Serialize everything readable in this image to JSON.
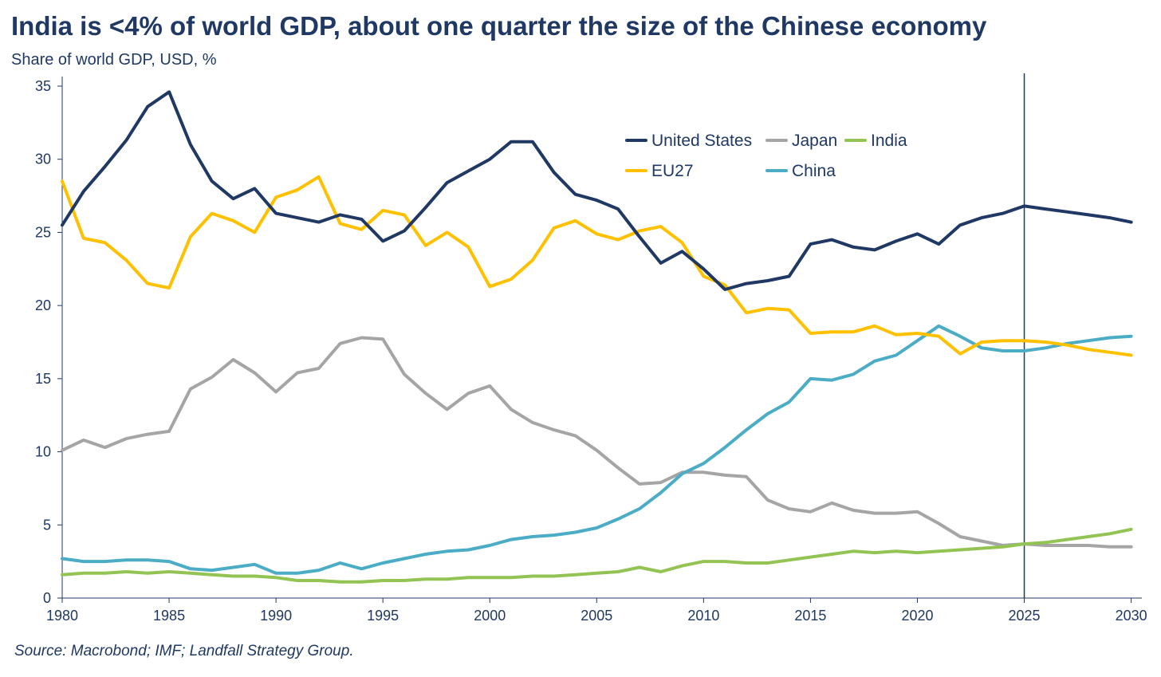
{
  "chart_data": {
    "type": "line",
    "title": "India is <4% of world GDP, about one quarter the size of the Chinese economy",
    "subtitle": "Share of world GDP, USD, %",
    "source": "Source: Macrobond; IMF; Landfall Strategy Group.",
    "xlim": [
      1980,
      2030.5
    ],
    "ylim": [
      0,
      35
    ],
    "x_ticks": [
      "1980",
      "1985",
      "1990",
      "1995",
      "2000",
      "2005",
      "2010",
      "2015",
      "2020",
      "2025",
      "2030"
    ],
    "y_ticks": [
      "0",
      "5",
      "10",
      "15",
      "20",
      "25",
      "30",
      "35"
    ],
    "vertical_marker": 2025,
    "grid": false,
    "legend_position": "top-right",
    "x": [
      1980,
      1981,
      1982,
      1983,
      1984,
      1985,
      1986,
      1987,
      1988,
      1989,
      1990,
      1991,
      1992,
      1993,
      1994,
      1995,
      1996,
      1997,
      1998,
      1999,
      2000,
      2001,
      2002,
      2003,
      2004,
      2005,
      2006,
      2007,
      2008,
      2009,
      2010,
      2011,
      2012,
      2013,
      2014,
      2015,
      2016,
      2017,
      2018,
      2019,
      2020,
      2021,
      2022,
      2023,
      2024,
      2025,
      2026,
      2027,
      2028,
      2029,
      2030
    ],
    "series": [
      {
        "name": "United States",
        "color": "#1f3864",
        "values": [
          25.5,
          27.8,
          29.5,
          31.3,
          33.6,
          34.6,
          31.0,
          28.5,
          27.3,
          28.0,
          26.3,
          26.0,
          25.7,
          26.2,
          25.9,
          24.4,
          25.1,
          26.7,
          28.4,
          29.2,
          30.0,
          31.2,
          31.2,
          29.1,
          27.6,
          27.2,
          26.6,
          24.7,
          22.9,
          23.7,
          22.5,
          21.1,
          21.5,
          21.7,
          22.0,
          24.2,
          24.5,
          24.0,
          23.8,
          24.4,
          24.9,
          24.2,
          25.5,
          26.0,
          26.3,
          26.8,
          26.6,
          26.4,
          26.2,
          26.0,
          25.7
        ]
      },
      {
        "name": "EU27",
        "color": "#ffc000",
        "values": [
          28.5,
          24.6,
          24.3,
          23.1,
          21.5,
          21.2,
          24.7,
          26.3,
          25.8,
          25.0,
          27.4,
          27.9,
          28.8,
          25.6,
          25.2,
          26.5,
          26.2,
          24.1,
          25.0,
          24.0,
          21.3,
          21.8,
          23.1,
          25.3,
          25.8,
          24.9,
          24.5,
          25.1,
          25.4,
          24.3,
          22.0,
          21.4,
          19.5,
          19.8,
          19.7,
          18.1,
          18.2,
          18.2,
          18.6,
          18.0,
          18.1,
          17.9,
          16.7,
          17.5,
          17.6,
          17.6,
          17.5,
          17.3,
          17.0,
          16.8,
          16.6
        ]
      },
      {
        "name": "Japan",
        "color": "#a5a5a5",
        "values": [
          10.1,
          10.8,
          10.3,
          10.9,
          11.2,
          11.4,
          14.3,
          15.1,
          16.3,
          15.4,
          14.1,
          15.4,
          15.7,
          17.4,
          17.8,
          17.7,
          15.3,
          14.0,
          12.9,
          14.0,
          14.5,
          12.9,
          12.0,
          11.5,
          11.1,
          10.1,
          8.9,
          7.8,
          7.9,
          8.6,
          8.6,
          8.4,
          8.3,
          6.7,
          6.1,
          5.9,
          6.5,
          6.0,
          5.8,
          5.8,
          5.9,
          5.1,
          4.2,
          3.9,
          3.6,
          3.7,
          3.6,
          3.6,
          3.6,
          3.5,
          3.5
        ]
      },
      {
        "name": "India",
        "color": "#92c353",
        "values": [
          1.6,
          1.7,
          1.7,
          1.8,
          1.7,
          1.8,
          1.7,
          1.6,
          1.5,
          1.5,
          1.4,
          1.2,
          1.2,
          1.1,
          1.1,
          1.2,
          1.2,
          1.3,
          1.3,
          1.4,
          1.4,
          1.4,
          1.5,
          1.5,
          1.6,
          1.7,
          1.8,
          2.1,
          1.8,
          2.2,
          2.5,
          2.5,
          2.4,
          2.4,
          2.6,
          2.8,
          3.0,
          3.2,
          3.1,
          3.2,
          3.1,
          3.2,
          3.3,
          3.4,
          3.5,
          3.7,
          3.8,
          4.0,
          4.2,
          4.4,
          4.7
        ]
      },
      {
        "name": "China",
        "color": "#4bacc6",
        "values": [
          2.7,
          2.5,
          2.5,
          2.6,
          2.6,
          2.5,
          2.0,
          1.9,
          2.1,
          2.3,
          1.7,
          1.7,
          1.9,
          2.4,
          2.0,
          2.4,
          2.7,
          3.0,
          3.2,
          3.3,
          3.6,
          4.0,
          4.2,
          4.3,
          4.5,
          4.8,
          5.4,
          6.1,
          7.2,
          8.5,
          9.2,
          10.3,
          11.5,
          12.6,
          13.4,
          15.0,
          14.9,
          15.3,
          16.2,
          16.6,
          17.6,
          18.6,
          17.9,
          17.1,
          16.9,
          16.9,
          17.1,
          17.4,
          17.6,
          17.8,
          17.9
        ]
      }
    ]
  }
}
